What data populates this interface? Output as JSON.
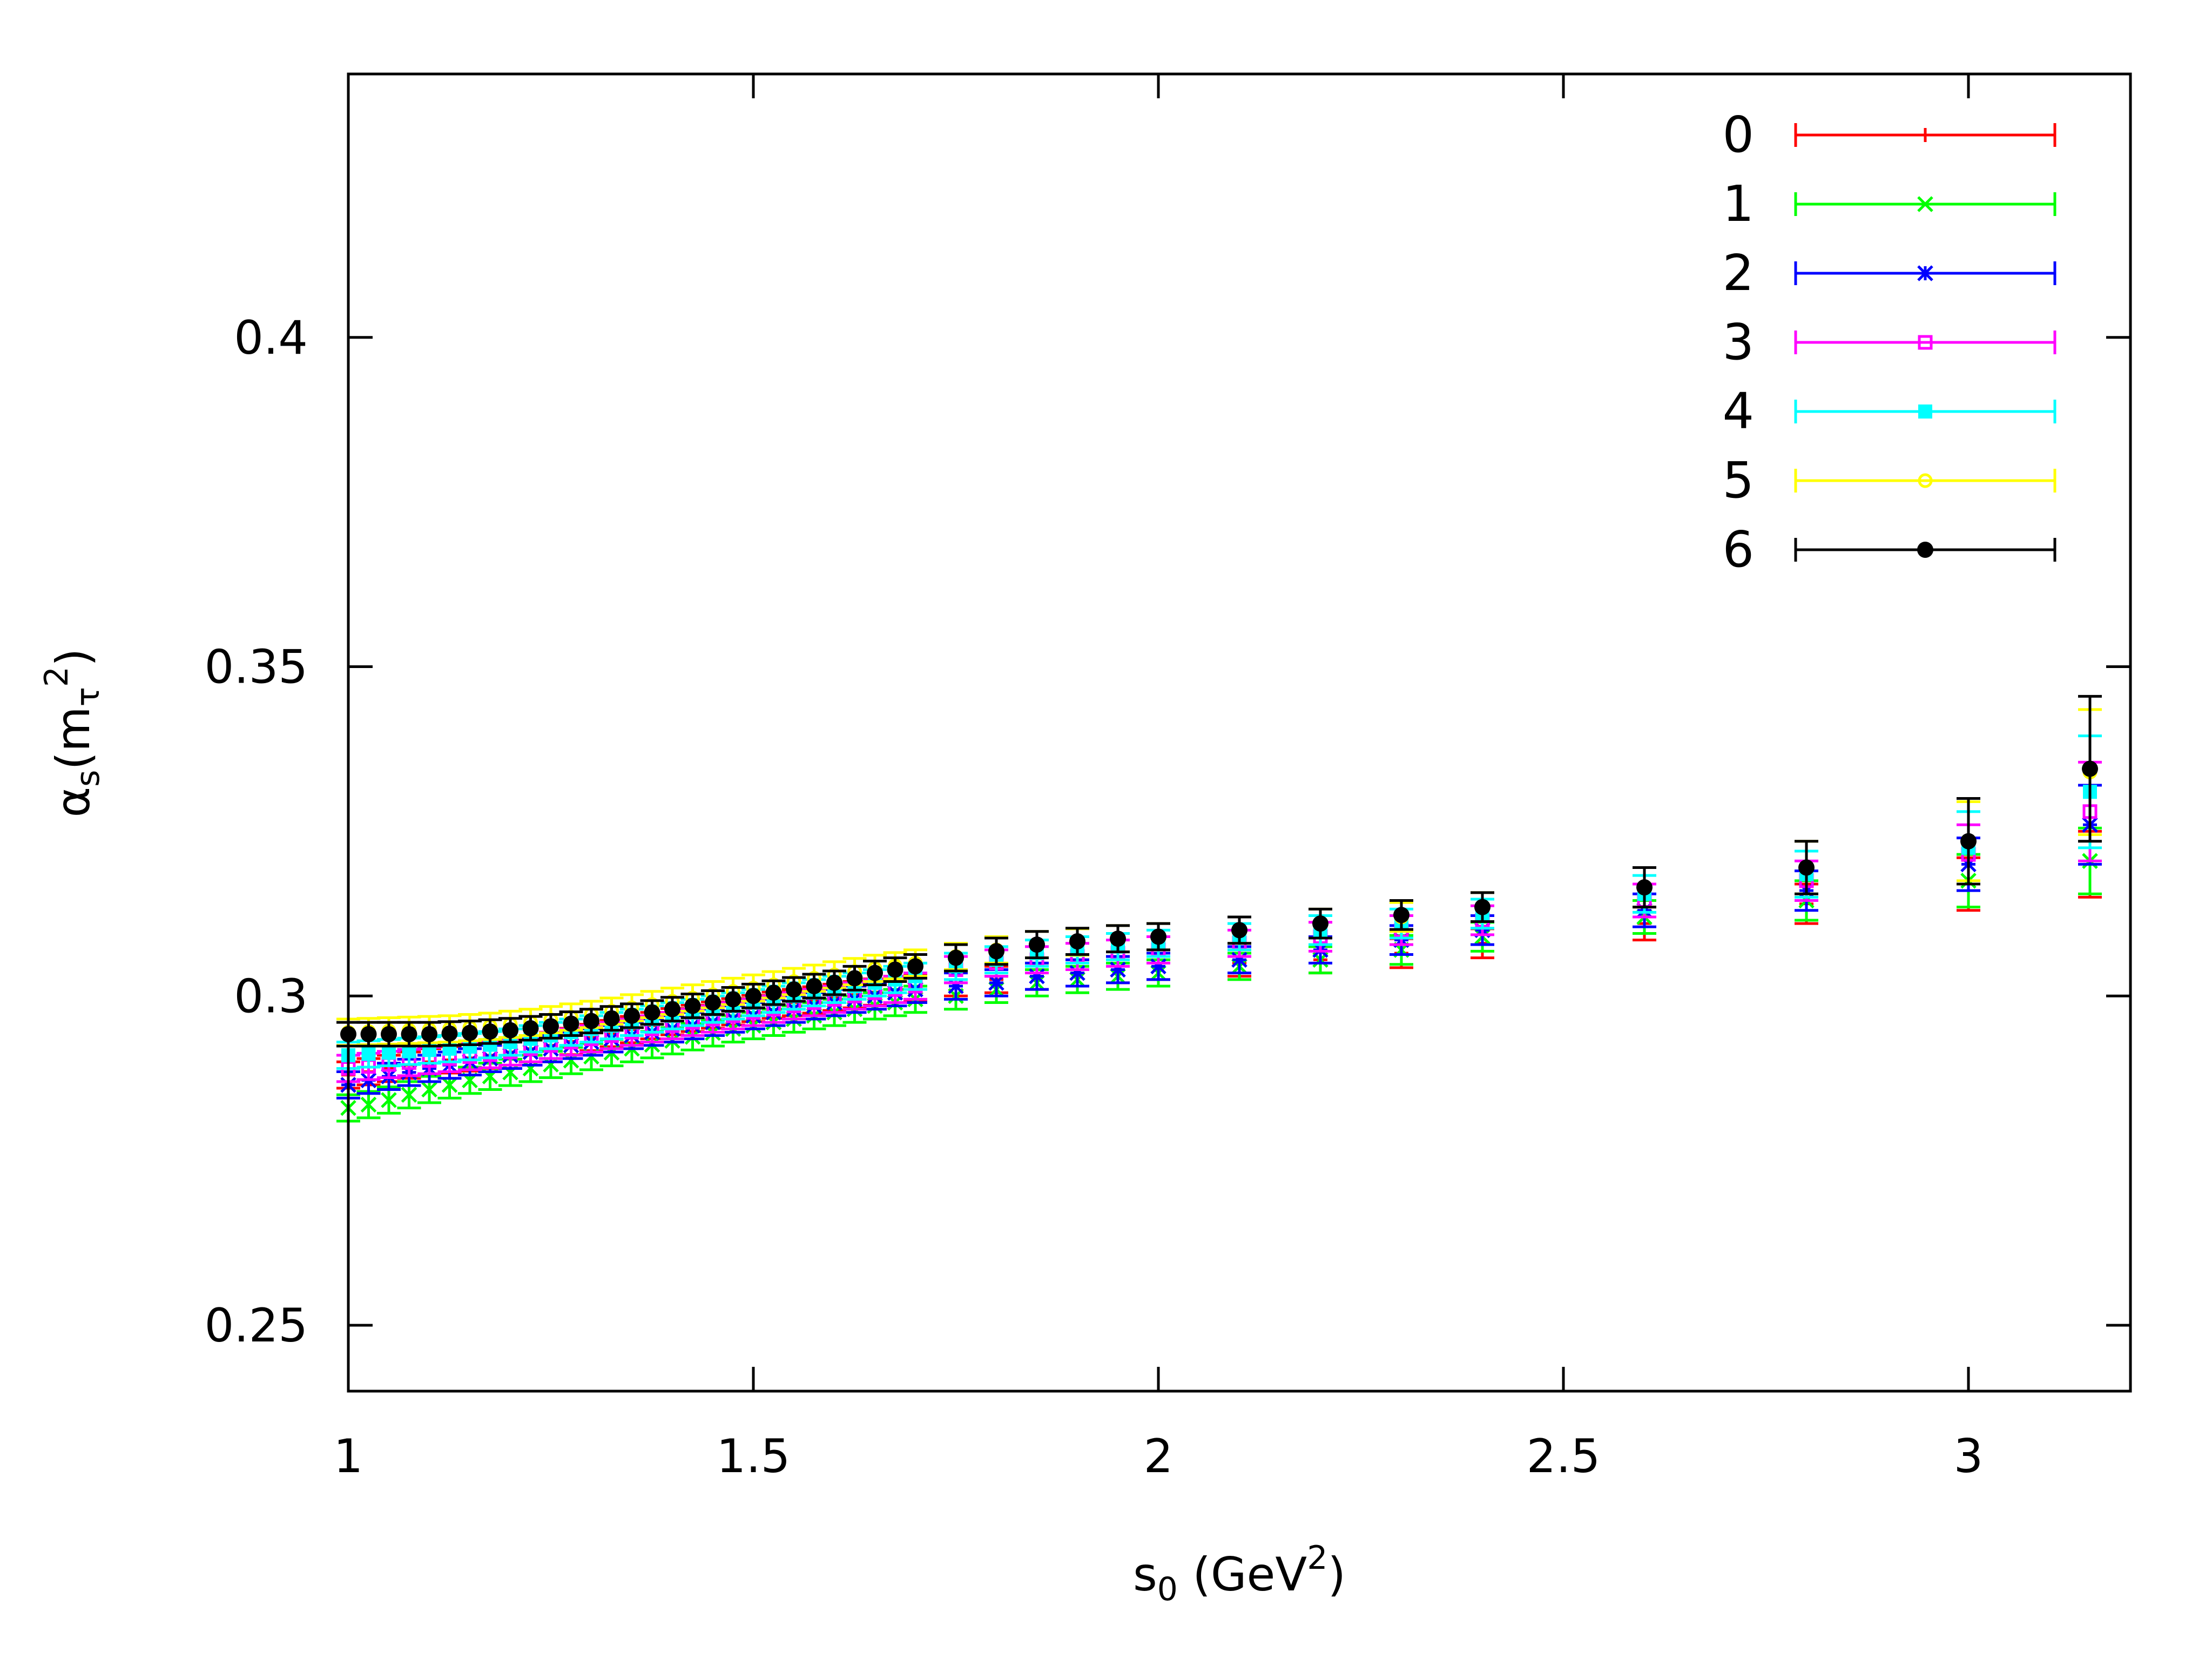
{
  "chart_data": {
    "type": "scatter",
    "title": "",
    "xlabel": "s0 (GeV2)",
    "ylabel": "αs(mτ2)",
    "xlim": [
      1.0,
      3.2
    ],
    "ylim": [
      0.24,
      0.44
    ],
    "x_ticks": [
      "1",
      "1.5",
      "2",
      "2.5",
      "3"
    ],
    "y_ticks": [
      "0.25",
      "0.3",
      "0.35",
      "0.4"
    ],
    "legend_position": "top-right",
    "x": [
      1.0,
      1.025,
      1.05,
      1.075,
      1.1,
      1.125,
      1.15,
      1.175,
      1.2,
      1.225,
      1.25,
      1.275,
      1.3,
      1.325,
      1.35,
      1.375,
      1.4,
      1.425,
      1.45,
      1.475,
      1.5,
      1.525,
      1.55,
      1.575,
      1.6,
      1.625,
      1.65,
      1.675,
      1.7,
      1.75,
      1.8,
      1.85,
      1.9,
      1.95,
      2.0,
      2.1,
      2.2,
      2.3,
      2.4,
      2.6,
      2.8,
      3.0,
      3.15
    ],
    "series": [
      {
        "name": "0",
        "color": "#ff0000",
        "marker": "plus",
        "values": [
          0.288,
          0.2885,
          0.289,
          0.2895,
          0.29,
          0.2903,
          0.2906,
          0.291,
          0.2915,
          0.292,
          0.2925,
          0.2931,
          0.2937,
          0.2943,
          0.2949,
          0.2955,
          0.2961,
          0.2966,
          0.2971,
          0.2976,
          0.2981,
          0.2986,
          0.299,
          0.2994,
          0.2998,
          0.3002,
          0.3006,
          0.301,
          0.3014,
          0.302,
          0.3025,
          0.303,
          0.3035,
          0.304,
          0.3045,
          0.305,
          0.3055,
          0.3065,
          0.308,
          0.311,
          0.314,
          0.317,
          0.32
        ],
        "errors": [
          0.002,
          0.002,
          0.002,
          0.002,
          0.002,
          0.002,
          0.002,
          0.002,
          0.002,
          0.002,
          0.002,
          0.002,
          0.002,
          0.002,
          0.002,
          0.002,
          0.002,
          0.002,
          0.002,
          0.002,
          0.002,
          0.002,
          0.002,
          0.002,
          0.002,
          0.002,
          0.002,
          0.002,
          0.002,
          0.002,
          0.002,
          0.002,
          0.002,
          0.002,
          0.002,
          0.002,
          0.002,
          0.0022,
          0.0022,
          0.0025,
          0.003,
          0.004,
          0.005
        ]
      },
      {
        "name": "1",
        "color": "#00ff00",
        "marker": "cross",
        "values": [
          0.283,
          0.2835,
          0.2842,
          0.285,
          0.2858,
          0.2865,
          0.2872,
          0.2878,
          0.2884,
          0.289,
          0.2896,
          0.2902,
          0.2908,
          0.2914,
          0.292,
          0.2926,
          0.2932,
          0.2938,
          0.2944,
          0.295,
          0.2955,
          0.296,
          0.2965,
          0.297,
          0.2975,
          0.298,
          0.2985,
          0.299,
          0.2995,
          0.3,
          0.301,
          0.302,
          0.3025,
          0.303,
          0.3035,
          0.3045,
          0.3055,
          0.307,
          0.309,
          0.312,
          0.3145,
          0.3175,
          0.3205
        ],
        "errors": [
          0.002,
          0.002,
          0.002,
          0.002,
          0.002,
          0.002,
          0.002,
          0.002,
          0.002,
          0.002,
          0.002,
          0.002,
          0.002,
          0.002,
          0.002,
          0.002,
          0.002,
          0.002,
          0.002,
          0.002,
          0.002,
          0.002,
          0.002,
          0.002,
          0.002,
          0.002,
          0.002,
          0.002,
          0.002,
          0.002,
          0.002,
          0.002,
          0.002,
          0.002,
          0.002,
          0.002,
          0.002,
          0.0022,
          0.0022,
          0.0025,
          0.003,
          0.004,
          0.005
        ]
      },
      {
        "name": "2",
        "color": "#0000ff",
        "marker": "star",
        "values": [
          0.2865,
          0.2872,
          0.2878,
          0.2884,
          0.289,
          0.2895,
          0.29,
          0.2905,
          0.291,
          0.2915,
          0.292,
          0.2925,
          0.293,
          0.2935,
          0.294,
          0.2945,
          0.295,
          0.2955,
          0.296,
          0.2965,
          0.297,
          0.2975,
          0.298,
          0.2985,
          0.299,
          0.2995,
          0.3,
          0.3005,
          0.301,
          0.3015,
          0.302,
          0.303,
          0.3035,
          0.304,
          0.3045,
          0.3055,
          0.307,
          0.3085,
          0.31,
          0.313,
          0.316,
          0.32,
          0.326
        ],
        "errors": [
          0.002,
          0.002,
          0.002,
          0.002,
          0.002,
          0.002,
          0.002,
          0.002,
          0.002,
          0.002,
          0.002,
          0.002,
          0.002,
          0.002,
          0.002,
          0.002,
          0.002,
          0.002,
          0.002,
          0.002,
          0.002,
          0.002,
          0.002,
          0.002,
          0.002,
          0.002,
          0.002,
          0.002,
          0.002,
          0.002,
          0.002,
          0.002,
          0.002,
          0.002,
          0.002,
          0.002,
          0.002,
          0.0022,
          0.0022,
          0.0025,
          0.003,
          0.004,
          0.006
        ]
      },
      {
        "name": "3",
        "color": "#ff00ff",
        "marker": "square-open",
        "values": [
          0.289,
          0.2893,
          0.2896,
          0.2899,
          0.2902,
          0.2905,
          0.2908,
          0.2911,
          0.2915,
          0.292,
          0.2925,
          0.293,
          0.2935,
          0.294,
          0.2945,
          0.295,
          0.2955,
          0.296,
          0.2965,
          0.297,
          0.2975,
          0.298,
          0.2985,
          0.299,
          0.2995,
          0.3,
          0.3005,
          0.301,
          0.3015,
          0.304,
          0.305,
          0.3055,
          0.306,
          0.3065,
          0.307,
          0.308,
          0.309,
          0.31,
          0.3115,
          0.3145,
          0.3175,
          0.3215,
          0.328
        ],
        "errors": [
          0.002,
          0.002,
          0.002,
          0.002,
          0.002,
          0.002,
          0.002,
          0.002,
          0.002,
          0.002,
          0.002,
          0.002,
          0.002,
          0.002,
          0.002,
          0.002,
          0.002,
          0.002,
          0.002,
          0.002,
          0.002,
          0.002,
          0.002,
          0.002,
          0.002,
          0.002,
          0.002,
          0.002,
          0.002,
          0.002,
          0.002,
          0.002,
          0.002,
          0.002,
          0.002,
          0.002,
          0.0022,
          0.0022,
          0.0022,
          0.0025,
          0.003,
          0.0045,
          0.0075
        ]
      },
      {
        "name": "4",
        "color": "#00ffff",
        "marker": "square-filled",
        "values": [
          0.291,
          0.2912,
          0.2914,
          0.2916,
          0.2918,
          0.292,
          0.2923,
          0.2926,
          0.293,
          0.2935,
          0.294,
          0.2945,
          0.295,
          0.2955,
          0.296,
          0.2965,
          0.297,
          0.2975,
          0.298,
          0.2985,
          0.299,
          0.2995,
          0.3,
          0.3005,
          0.301,
          0.3015,
          0.302,
          0.3025,
          0.303,
          0.3045,
          0.3055,
          0.3065,
          0.307,
          0.3075,
          0.308,
          0.309,
          0.31,
          0.311,
          0.3125,
          0.3155,
          0.3185,
          0.3225,
          0.331
        ],
        "errors": [
          0.002,
          0.002,
          0.002,
          0.002,
          0.002,
          0.002,
          0.002,
          0.002,
          0.002,
          0.002,
          0.002,
          0.002,
          0.002,
          0.002,
          0.002,
          0.002,
          0.002,
          0.002,
          0.002,
          0.002,
          0.002,
          0.002,
          0.002,
          0.002,
          0.002,
          0.002,
          0.002,
          0.002,
          0.002,
          0.002,
          0.002,
          0.002,
          0.002,
          0.002,
          0.002,
          0.002,
          0.0022,
          0.0022,
          0.0022,
          0.0028,
          0.0035,
          0.0055,
          0.0085
        ]
      },
      {
        "name": "5",
        "color": "#ffff00",
        "marker": "circle-open",
        "values": [
          0.2945,
          0.2946,
          0.2947,
          0.2948,
          0.2949,
          0.295,
          0.2952,
          0.2954,
          0.2957,
          0.296,
          0.2964,
          0.2968,
          0.2972,
          0.2977,
          0.2982,
          0.2987,
          0.2992,
          0.2997,
          0.3002,
          0.3007,
          0.3012,
          0.3017,
          0.3022,
          0.3027,
          0.3032,
          0.3037,
          0.3042,
          0.3046,
          0.305,
          0.306,
          0.307,
          0.3078,
          0.3082,
          0.3087,
          0.309,
          0.31,
          0.311,
          0.312,
          0.3135,
          0.3165,
          0.3195,
          0.3235,
          0.334
        ],
        "errors": [
          0.002,
          0.002,
          0.002,
          0.002,
          0.002,
          0.002,
          0.002,
          0.002,
          0.002,
          0.002,
          0.002,
          0.002,
          0.002,
          0.002,
          0.002,
          0.002,
          0.002,
          0.002,
          0.002,
          0.002,
          0.002,
          0.002,
          0.002,
          0.002,
          0.002,
          0.002,
          0.002,
          0.002,
          0.002,
          0.002,
          0.002,
          0.002,
          0.002,
          0.002,
          0.002,
          0.002,
          0.0022,
          0.0022,
          0.0022,
          0.003,
          0.004,
          0.006,
          0.0095
        ]
      },
      {
        "name": "6",
        "color": "#000000",
        "marker": "circle-filled",
        "values": [
          0.2942,
          0.2942,
          0.2942,
          0.2942,
          0.2942,
          0.2943,
          0.2944,
          0.2946,
          0.2948,
          0.2951,
          0.2954,
          0.2958,
          0.2962,
          0.2966,
          0.297,
          0.2975,
          0.298,
          0.2985,
          0.299,
          0.2995,
          0.3,
          0.3005,
          0.301,
          0.3015,
          0.302,
          0.3027,
          0.3035,
          0.304,
          0.3045,
          0.3058,
          0.3068,
          0.3078,
          0.3083,
          0.3087,
          0.309,
          0.31,
          0.311,
          0.3123,
          0.3135,
          0.3165,
          0.3195,
          0.3235,
          0.3345
        ],
        "errors": [
          0.0018,
          0.0018,
          0.0018,
          0.0018,
          0.0018,
          0.0018,
          0.0018,
          0.0018,
          0.0018,
          0.0018,
          0.0018,
          0.0018,
          0.0018,
          0.0018,
          0.0018,
          0.0018,
          0.0018,
          0.0018,
          0.0018,
          0.0018,
          0.0018,
          0.0018,
          0.0018,
          0.0018,
          0.0018,
          0.0018,
          0.0018,
          0.0018,
          0.0018,
          0.002,
          0.002,
          0.002,
          0.002,
          0.002,
          0.002,
          0.002,
          0.0022,
          0.0022,
          0.0022,
          0.003,
          0.004,
          0.0065,
          0.011
        ]
      }
    ]
  },
  "labels": {
    "y_alpha": "α",
    "y_sub_s": "s",
    "y_open": "(m",
    "y_sub_tau": "τ",
    "y_sup_2": "2",
    "y_close": ")",
    "x_s": "s",
    "x_sub_0": "0",
    "x_unit_open": " (GeV",
    "x_sup_2": "2",
    "x_unit_close": ")"
  }
}
